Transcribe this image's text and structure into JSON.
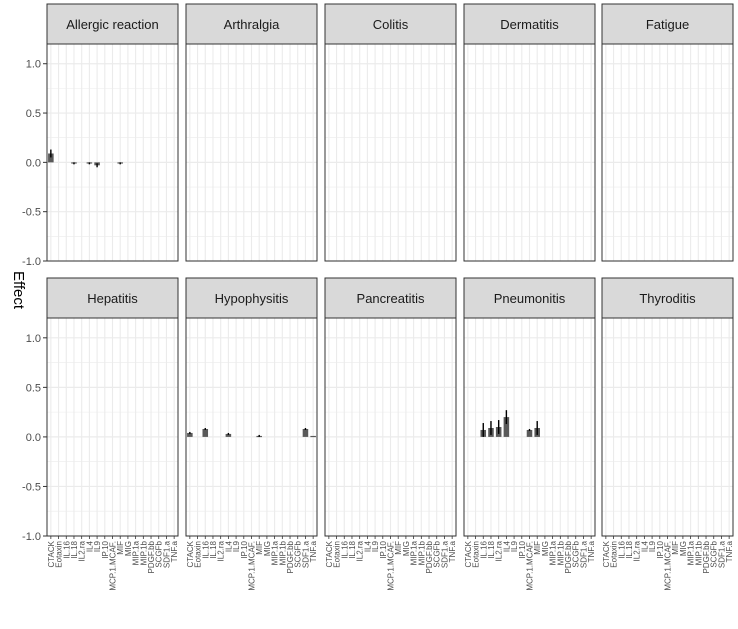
{
  "chart_data": {
    "type": "bar",
    "ylabel": "Effect",
    "xlabel": "",
    "ylim": [
      -1.0,
      1.2
    ],
    "yticks": [
      -1.0,
      -0.5,
      0.0,
      0.5,
      1.0
    ],
    "ytick_labels": [
      "-1.0",
      "-0.5",
      "0.0",
      "0.5",
      "1.0"
    ],
    "grid": true,
    "facet_rows": 2,
    "facet_cols": 5,
    "categories": [
      "CTACK",
      "Eotaxin",
      "IL.16",
      "IL.18",
      "IL2.ra",
      "IL4",
      "IL9",
      "IP.10",
      "MCP.1.MCAF.",
      "MIF",
      "MIG",
      "MIP.1a",
      "MIP.1b",
      "PDGF.bb",
      "SCGFb",
      "SDF1.a",
      "TNF.a"
    ],
    "bar_color": "#595959",
    "panel_bg": "#ffffff",
    "strip_bg": "#d9d9d9",
    "grid_color": "#ebebeb",
    "facets": [
      {
        "title": "Allergic reaction",
        "values": [
          0.09,
          0,
          0,
          -0.01,
          0,
          -0.01,
          -0.03,
          0,
          0,
          -0.01,
          0,
          0,
          0,
          0,
          0,
          0,
          0
        ],
        "errors": [
          0.04,
          0,
          0,
          0.01,
          0,
          0.01,
          0.02,
          0,
          0,
          0.01,
          0,
          0,
          0,
          0,
          0,
          0,
          0
        ]
      },
      {
        "title": "Arthralgia",
        "values": [
          0,
          0,
          0,
          0,
          0,
          0,
          0,
          0,
          0,
          0,
          0,
          0,
          0,
          0,
          0,
          0,
          0
        ],
        "errors": [
          0,
          0,
          0,
          0,
          0,
          0,
          0,
          0,
          0,
          0,
          0,
          0,
          0,
          0,
          0,
          0,
          0
        ]
      },
      {
        "title": "Colitis",
        "values": [
          0,
          0,
          0,
          0,
          0,
          0,
          0,
          0,
          0,
          0,
          0,
          0,
          0,
          0,
          0,
          0,
          0
        ],
        "errors": [
          0,
          0,
          0,
          0,
          0,
          0,
          0,
          0,
          0,
          0,
          0,
          0,
          0,
          0,
          0,
          0,
          0
        ]
      },
      {
        "title": "Dermatitis",
        "values": [
          0,
          0,
          0,
          0,
          0,
          0,
          0,
          0,
          0,
          0,
          0,
          0,
          0,
          0,
          0,
          0,
          0
        ],
        "errors": [
          0,
          0,
          0,
          0,
          0,
          0,
          0,
          0,
          0,
          0,
          0,
          0,
          0,
          0,
          0,
          0,
          0
        ]
      },
      {
        "title": "Fatigue",
        "values": [
          0,
          0,
          0,
          0,
          0,
          0,
          0,
          0,
          0,
          0,
          0,
          0,
          0,
          0,
          0,
          0,
          0
        ],
        "errors": [
          0,
          0,
          0,
          0,
          0,
          0,
          0,
          0,
          0,
          0,
          0,
          0,
          0,
          0,
          0,
          0,
          0
        ]
      },
      {
        "title": "Hepatitis",
        "values": [
          0,
          0,
          0,
          0,
          0,
          0,
          0,
          0,
          0,
          0,
          0,
          0,
          0,
          0,
          0,
          0,
          0
        ],
        "errors": [
          0,
          0,
          0,
          0,
          0,
          0,
          0,
          0,
          0,
          0,
          0,
          0,
          0,
          0,
          0,
          0,
          0
        ]
      },
      {
        "title": "Hypophysitis",
        "values": [
          0.04,
          0,
          0.08,
          0,
          0,
          0.03,
          0,
          0,
          0,
          0.01,
          0,
          0,
          0,
          0,
          0,
          0.08,
          0.01
        ],
        "errors": [
          0.01,
          0,
          0.01,
          0,
          0,
          0.01,
          0,
          0,
          0,
          0.01,
          0,
          0,
          0,
          0,
          0,
          0.01,
          0
        ]
      },
      {
        "title": "Pancreatitis",
        "values": [
          0,
          0,
          0,
          0,
          0,
          0,
          0,
          0,
          0,
          0,
          0,
          0,
          0,
          0,
          0,
          0,
          0
        ],
        "errors": [
          0,
          0,
          0,
          0,
          0,
          0,
          0,
          0,
          0,
          0,
          0,
          0,
          0,
          0,
          0,
          0,
          0
        ]
      },
      {
        "title": "Pneumonitis",
        "values": [
          0,
          0,
          0.07,
          0.09,
          0.1,
          0.2,
          0,
          0,
          0.07,
          0.09,
          0,
          0,
          0,
          0,
          0,
          0,
          0
        ],
        "errors": [
          0,
          0,
          0.07,
          0.07,
          0.07,
          0.07,
          0,
          0,
          0.01,
          0.07,
          0,
          0,
          0,
          0,
          0,
          0,
          0
        ]
      },
      {
        "title": "Thyroditis",
        "values": [
          0,
          0,
          0,
          0,
          0,
          0,
          0,
          0,
          0,
          0,
          0,
          0,
          0,
          0,
          0,
          0,
          0
        ],
        "errors": [
          0,
          0,
          0,
          0,
          0,
          0,
          0,
          0,
          0,
          0,
          0,
          0,
          0,
          0,
          0,
          0,
          0
        ]
      }
    ]
  }
}
